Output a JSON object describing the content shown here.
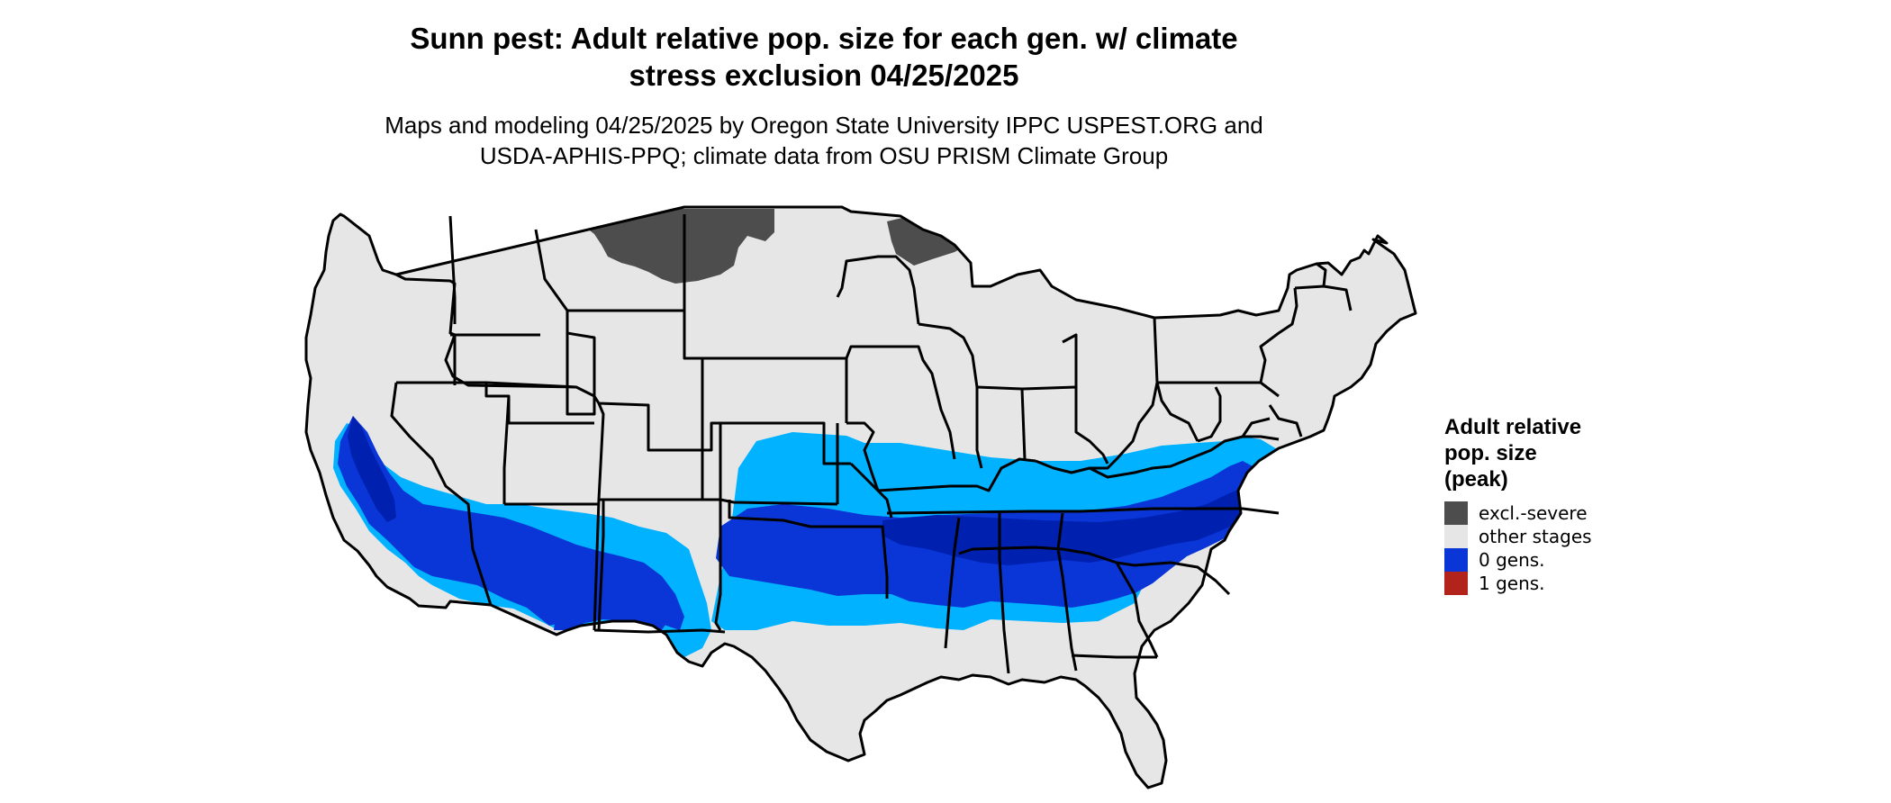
{
  "title_line1": "Sunn pest: Adult relative pop. size for each gen. w/ climate",
  "title_line2": "stress exclusion 04/25/2025",
  "subtitle_line1": "Maps and modeling 04/25/2025 by Oregon State University IPPC USPEST.ORG and",
  "subtitle_line2": "USDA-APHIS-PPQ; climate data from OSU PRISM Climate Group",
  "legend": {
    "title_line1": "Adult relative",
    "title_line2": "pop. size",
    "title_line3": "(peak)",
    "items": [
      {
        "label": "excl.-severe",
        "color": "#4d4d4d"
      },
      {
        "label": "other stages",
        "color": "#e6e6e6"
      },
      {
        "label": "0 gens.",
        "color": "#0a36d8"
      },
      {
        "label": "1 gens.",
        "color": "#b2241b"
      }
    ]
  },
  "colors": {
    "land": "#e6e6e6",
    "excluded": "#4d4d4d",
    "light_blue": "#00b2ff",
    "mid_blue": "#0a36d8",
    "dark_blue": "#0020b0",
    "border": "#000000"
  }
}
